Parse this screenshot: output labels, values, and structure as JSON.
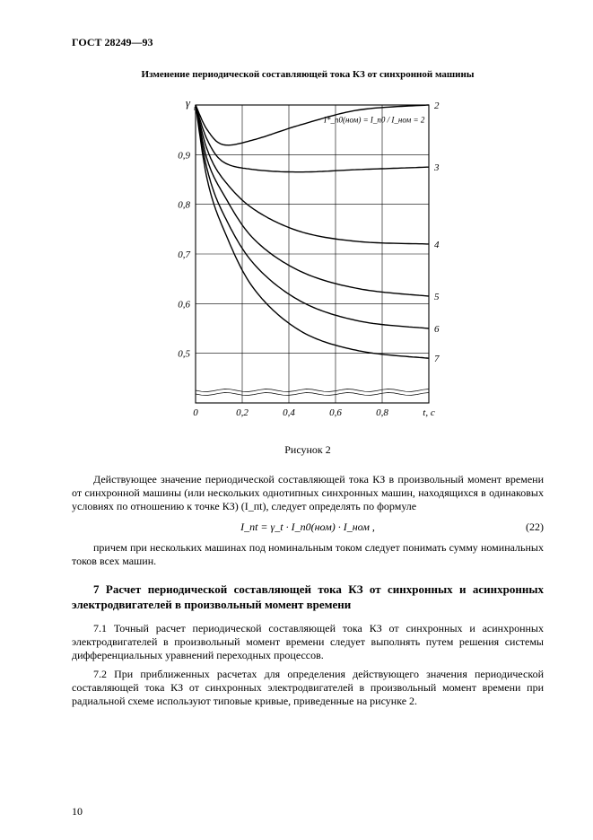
{
  "document": {
    "header": "ГОСТ 28249—93",
    "page_number": "10"
  },
  "figure": {
    "title": "Изменение периодической составляющей тока КЗ от синхронной машины",
    "caption": "Рисунок 2",
    "chart": {
      "type": "line",
      "x_axis": {
        "label": "t, с",
        "min": 0,
        "max": 1.0,
        "ticks": [
          "0",
          "0,2",
          "0,4",
          "0,6",
          "0,8",
          "t, с"
        ]
      },
      "y_axis": {
        "label": "γ_t",
        "min": 0.4,
        "max": 1.0,
        "ticks": [
          "0,5",
          "0,6",
          "0,7",
          "0,8",
          "0,9",
          ""
        ]
      },
      "curve_labels": [
        "2",
        "3",
        "4",
        "5",
        "6",
        "7"
      ],
      "annotation": "I*_п0(ном) = I_п0 / I_ном = 2",
      "background_color": "#ffffff",
      "line_color": "#000000",
      "grid_color": "#000000",
      "line_width": 1.4,
      "grid_width": 0.6,
      "series": [
        {
          "label": "2",
          "pts": [
            [
              0,
              1.0
            ],
            [
              0.05,
              0.95
            ],
            [
              0.12,
              0.92
            ],
            [
              0.25,
              0.93
            ],
            [
              0.45,
              0.96
            ],
            [
              0.7,
              0.99
            ],
            [
              1.0,
              1.0
            ]
          ]
        },
        {
          "label": "3",
          "pts": [
            [
              0,
              1.0
            ],
            [
              0.05,
              0.93
            ],
            [
              0.12,
              0.885
            ],
            [
              0.25,
              0.87
            ],
            [
              0.45,
              0.865
            ],
            [
              0.7,
              0.87
            ],
            [
              1.0,
              0.875
            ]
          ]
        },
        {
          "label": "4",
          "pts": [
            [
              0,
              1.0
            ],
            [
              0.05,
              0.91
            ],
            [
              0.12,
              0.85
            ],
            [
              0.25,
              0.79
            ],
            [
              0.45,
              0.745
            ],
            [
              0.7,
              0.725
            ],
            [
              1.0,
              0.72
            ]
          ]
        },
        {
          "label": "5",
          "pts": [
            [
              0,
              1.0
            ],
            [
              0.05,
              0.89
            ],
            [
              0.12,
              0.82
            ],
            [
              0.25,
              0.73
            ],
            [
              0.45,
              0.665
            ],
            [
              0.7,
              0.63
            ],
            [
              1.0,
              0.615
            ]
          ]
        },
        {
          "label": "6",
          "pts": [
            [
              0,
              1.0
            ],
            [
              0.05,
              0.87
            ],
            [
              0.12,
              0.78
            ],
            [
              0.25,
              0.68
            ],
            [
              0.45,
              0.605
            ],
            [
              0.7,
              0.565
            ],
            [
              1.0,
              0.55
            ]
          ]
        },
        {
          "label": "7",
          "pts": [
            [
              0,
              1.0
            ],
            [
              0.05,
              0.85
            ],
            [
              0.12,
              0.75
            ],
            [
              0.25,
              0.63
            ],
            [
              0.45,
              0.545
            ],
            [
              0.7,
              0.505
            ],
            [
              1.0,
              0.49
            ]
          ]
        }
      ]
    }
  },
  "text": {
    "para1": "Действующее значение периодической составляющей тока КЗ в произвольный момент времени от синхронной машины (или нескольких однотипных синхронных машин, находящихся в одинаковых условиях по отношению к точке КЗ) (I_пt), следует определять по формуле",
    "formula": "I_пt = γ_t · I_п0(ном) · I_ном ,",
    "formula_num": "(22)",
    "para2": "причем при нескольких машинах под номинальным током следует понимать сумму номинальных токов всех машин.",
    "section_title": "7  Расчет периодической составляющей тока КЗ от синхронных и асинхронных электродвигателей в произвольный момент времени",
    "para3": "7.1 Точный расчет периодической составляющей тока КЗ от синхронных и асинхронных электродвигателей в произвольный момент времени следует выполнять путем решения системы дифференциальных уравнений переходных процессов.",
    "para4": "7.2 При приближенных расчетах для определения действующего значения периодической составляющей тока КЗ от синхронных электродвигателей в произвольный момент времени при радиальной схеме используют типовые кривые, приведенные на рисунке 2."
  }
}
